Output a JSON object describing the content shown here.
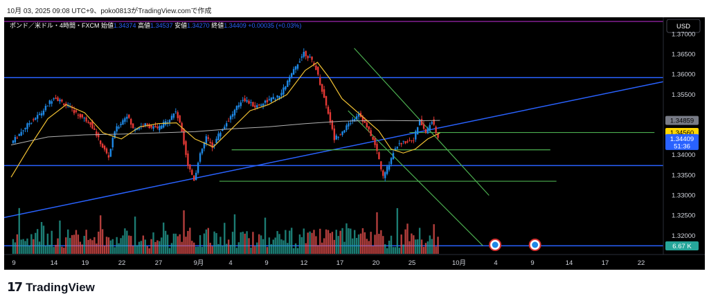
{
  "caption": "10月 03, 2025 09:08 UTC+9、poko0813がTradingView.comで作成",
  "logo": {
    "mark": "17",
    "text": "TradingView"
  },
  "colors": {
    "background": "#000000",
    "up": "#1e88e5",
    "down": "#e53935",
    "vol_up": "#26a69a",
    "vol_down": "#ef5350",
    "ma_fast": "#f2c233",
    "ma_slow": "#b2b2b2",
    "level": "#2962ff",
    "green": "#4caf50",
    "top_line": "#9c27b0"
  },
  "chart_data": {
    "type": "candlestick",
    "title": "ポンド／米ドル・4時間・FXCM",
    "ohlc_labels": {
      "open_label": "始値",
      "open": "1.34374",
      "high_label": "高値",
      "high": "1.34537",
      "low_label": "安値",
      "low": "1.34270",
      "close_label": "終値",
      "close": "1.34409",
      "change": "+0.00035 (+0.03%)"
    },
    "currency": "USD",
    "ylim": [
      1.3155,
      1.3728
    ],
    "y_ticks": [
      "1.37000",
      "1.36500",
      "1.36000",
      "1.35500",
      "1.34000",
      "1.33500",
      "1.33000",
      "1.32500",
      "1.32000"
    ],
    "x_ticks": [
      "9",
      "14",
      "19",
      "22",
      "27",
      "9月",
      "4",
      "9",
      "12",
      "17",
      "20",
      "25",
      "10月",
      "4",
      "9",
      "14",
      "17",
      "22"
    ],
    "price_tags": [
      {
        "label": "1.34859",
        "value": 1.34859,
        "style": "grey"
      },
      {
        "label": "1.34560",
        "value": 1.3456,
        "style": "yellow"
      },
      {
        "label": "1.34409",
        "value": 1.34409,
        "style": "blue"
      }
    ],
    "countdown": "51:36",
    "volume_label": "6.67 K",
    "horizontal_levels": [
      {
        "value": 1.3592,
        "color": "level"
      },
      {
        "value": 1.3374,
        "color": "level"
      },
      {
        "value": 1.3175,
        "color": "level"
      }
    ],
    "close_series": [
      {
        "x": 0,
        "y": 1.343
      },
      {
        "x": 3,
        "y": 1.348
      },
      {
        "x": 5,
        "y": 1.3505
      },
      {
        "x": 7,
        "y": 1.3545
      },
      {
        "x": 9,
        "y": 1.3525
      },
      {
        "x": 11,
        "y": 1.35
      },
      {
        "x": 13,
        "y": 1.348
      },
      {
        "x": 15,
        "y": 1.342
      },
      {
        "x": 16,
        "y": 1.3395
      },
      {
        "x": 17,
        "y": 1.346
      },
      {
        "x": 19,
        "y": 1.35
      },
      {
        "x": 20,
        "y": 1.3465
      },
      {
        "x": 22,
        "y": 1.3475
      },
      {
        "x": 24,
        "y": 1.3465
      },
      {
        "x": 26,
        "y": 1.349
      },
      {
        "x": 27,
        "y": 1.351
      },
      {
        "x": 28,
        "y": 1.346
      },
      {
        "x": 29,
        "y": 1.3375
      },
      {
        "x": 30,
        "y": 1.334
      },
      {
        "x": 31,
        "y": 1.34
      },
      {
        "x": 32,
        "y": 1.3445
      },
      {
        "x": 33,
        "y": 1.342
      },
      {
        "x": 34,
        "y": 1.345
      },
      {
        "x": 36,
        "y": 1.3495
      },
      {
        "x": 38,
        "y": 1.354
      },
      {
        "x": 40,
        "y": 1.352
      },
      {
        "x": 42,
        "y": 1.3535
      },
      {
        "x": 44,
        "y": 1.3545
      },
      {
        "x": 46,
        "y": 1.36
      },
      {
        "x": 48,
        "y": 1.3655
      },
      {
        "x": 49,
        "y": 1.364
      },
      {
        "x": 50,
        "y": 1.3615
      },
      {
        "x": 51,
        "y": 1.356
      },
      {
        "x": 52,
        "y": 1.3505
      },
      {
        "x": 53,
        "y": 1.344
      },
      {
        "x": 55,
        "y": 1.347
      },
      {
        "x": 57,
        "y": 1.3505
      },
      {
        "x": 59,
        "y": 1.345
      },
      {
        "x": 60,
        "y": 1.341
      },
      {
        "x": 61,
        "y": 1.3345
      },
      {
        "x": 62,
        "y": 1.338
      },
      {
        "x": 63,
        "y": 1.342
      },
      {
        "x": 64,
        "y": 1.343
      },
      {
        "x": 66,
        "y": 1.344
      },
      {
        "x": 67,
        "y": 1.3485
      },
      {
        "x": 68,
        "y": 1.3455
      },
      {
        "x": 69,
        "y": 1.3485
      },
      {
        "x": 70,
        "y": 1.3441
      }
    ],
    "ma_fast": [
      {
        "x": 0,
        "y": 1.3345
      },
      {
        "x": 3,
        "y": 1.342
      },
      {
        "x": 6,
        "y": 1.349
      },
      {
        "x": 9,
        "y": 1.3525
      },
      {
        "x": 12,
        "y": 1.3505
      },
      {
        "x": 15,
        "y": 1.3455
      },
      {
        "x": 18,
        "y": 1.344
      },
      {
        "x": 21,
        "y": 1.347
      },
      {
        "x": 24,
        "y": 1.3478
      },
      {
        "x": 27,
        "y": 1.348
      },
      {
        "x": 30,
        "y": 1.344
      },
      {
        "x": 33,
        "y": 1.342
      },
      {
        "x": 36,
        "y": 1.3465
      },
      {
        "x": 39,
        "y": 1.351
      },
      {
        "x": 42,
        "y": 1.3525
      },
      {
        "x": 45,
        "y": 1.355
      },
      {
        "x": 48,
        "y": 1.361
      },
      {
        "x": 50,
        "y": 1.363
      },
      {
        "x": 52,
        "y": 1.359
      },
      {
        "x": 54,
        "y": 1.354
      },
      {
        "x": 57,
        "y": 1.35
      },
      {
        "x": 60,
        "y": 1.346
      },
      {
        "x": 62,
        "y": 1.3415
      },
      {
        "x": 64,
        "y": 1.3405
      },
      {
        "x": 66,
        "y": 1.3415
      },
      {
        "x": 68,
        "y": 1.344
      },
      {
        "x": 70,
        "y": 1.3455
      }
    ],
    "ma_slow": [
      {
        "x": 0,
        "y": 1.3425
      },
      {
        "x": 6,
        "y": 1.3445
      },
      {
        "x": 12,
        "y": 1.345
      },
      {
        "x": 18,
        "y": 1.3452
      },
      {
        "x": 24,
        "y": 1.3455
      },
      {
        "x": 30,
        "y": 1.3458
      },
      {
        "x": 36,
        "y": 1.3465
      },
      {
        "x": 42,
        "y": 1.347
      },
      {
        "x": 48,
        "y": 1.3478
      },
      {
        "x": 54,
        "y": 1.3484
      },
      {
        "x": 60,
        "y": 1.3486
      },
      {
        "x": 66,
        "y": 1.3485
      },
      {
        "x": 70,
        "y": 1.3486
      }
    ],
    "x_range": [
      0,
      100
    ]
  }
}
